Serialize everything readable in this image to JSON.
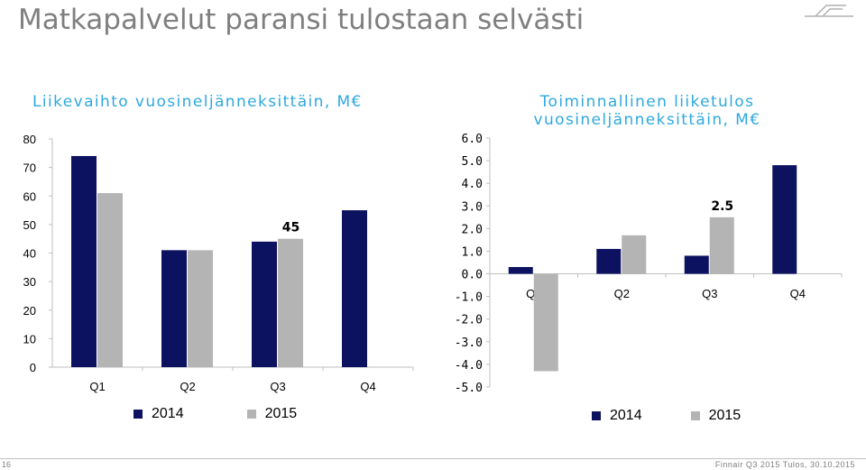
{
  "slide": {
    "title": "Matkapalvelut paransi tulostaan selvästi",
    "page_number": "16",
    "footer": "Finnair Q3 2015 Tulos, 30.10.2015"
  },
  "colors": {
    "series_2014": "#0d1260",
    "series_2015": "#b4b4b4",
    "title_accent": "#2ea8df"
  },
  "chart_data": [
    {
      "type": "bar",
      "title": "Liikevaihto vuosineljänneksittäin, M€",
      "categories": [
        "Q1",
        "Q2",
        "Q3",
        "Q4"
      ],
      "series": [
        {
          "name": "2014",
          "values": [
            74,
            41,
            44,
            55
          ]
        },
        {
          "name": "2015",
          "values": [
            61,
            41,
            45,
            null
          ]
        }
      ],
      "data_labels": [
        {
          "series": 1,
          "index": 2,
          "text": "45"
        }
      ],
      "yticks": [
        "0",
        "10",
        "20",
        "30",
        "40",
        "50",
        "60",
        "70",
        "80"
      ],
      "ylim": [
        0,
        80
      ],
      "grid": false,
      "legend": "bottom"
    },
    {
      "type": "bar",
      "title": "Toiminnallinen liiketulos vuosineljänneksittäin, M€",
      "categories": [
        "Q1",
        "Q2",
        "Q3",
        "Q4"
      ],
      "series": [
        {
          "name": "2014",
          "values": [
            0.3,
            1.1,
            0.8,
            4.8
          ]
        },
        {
          "name": "2015",
          "values": [
            -4.3,
            1.7,
            2.5,
            null
          ]
        }
      ],
      "data_labels": [
        {
          "series": 1,
          "index": 2,
          "text": "2.5"
        }
      ],
      "yticks": [
        "-5.0",
        "-4.0",
        "-3.0",
        "-2.0",
        "-1.0",
        "0.0",
        "1.0",
        "2.0",
        "3.0",
        "4.0",
        "5.0",
        "6.0"
      ],
      "ylim": [
        -5,
        6
      ],
      "grid": false,
      "legend": "bottom"
    }
  ]
}
